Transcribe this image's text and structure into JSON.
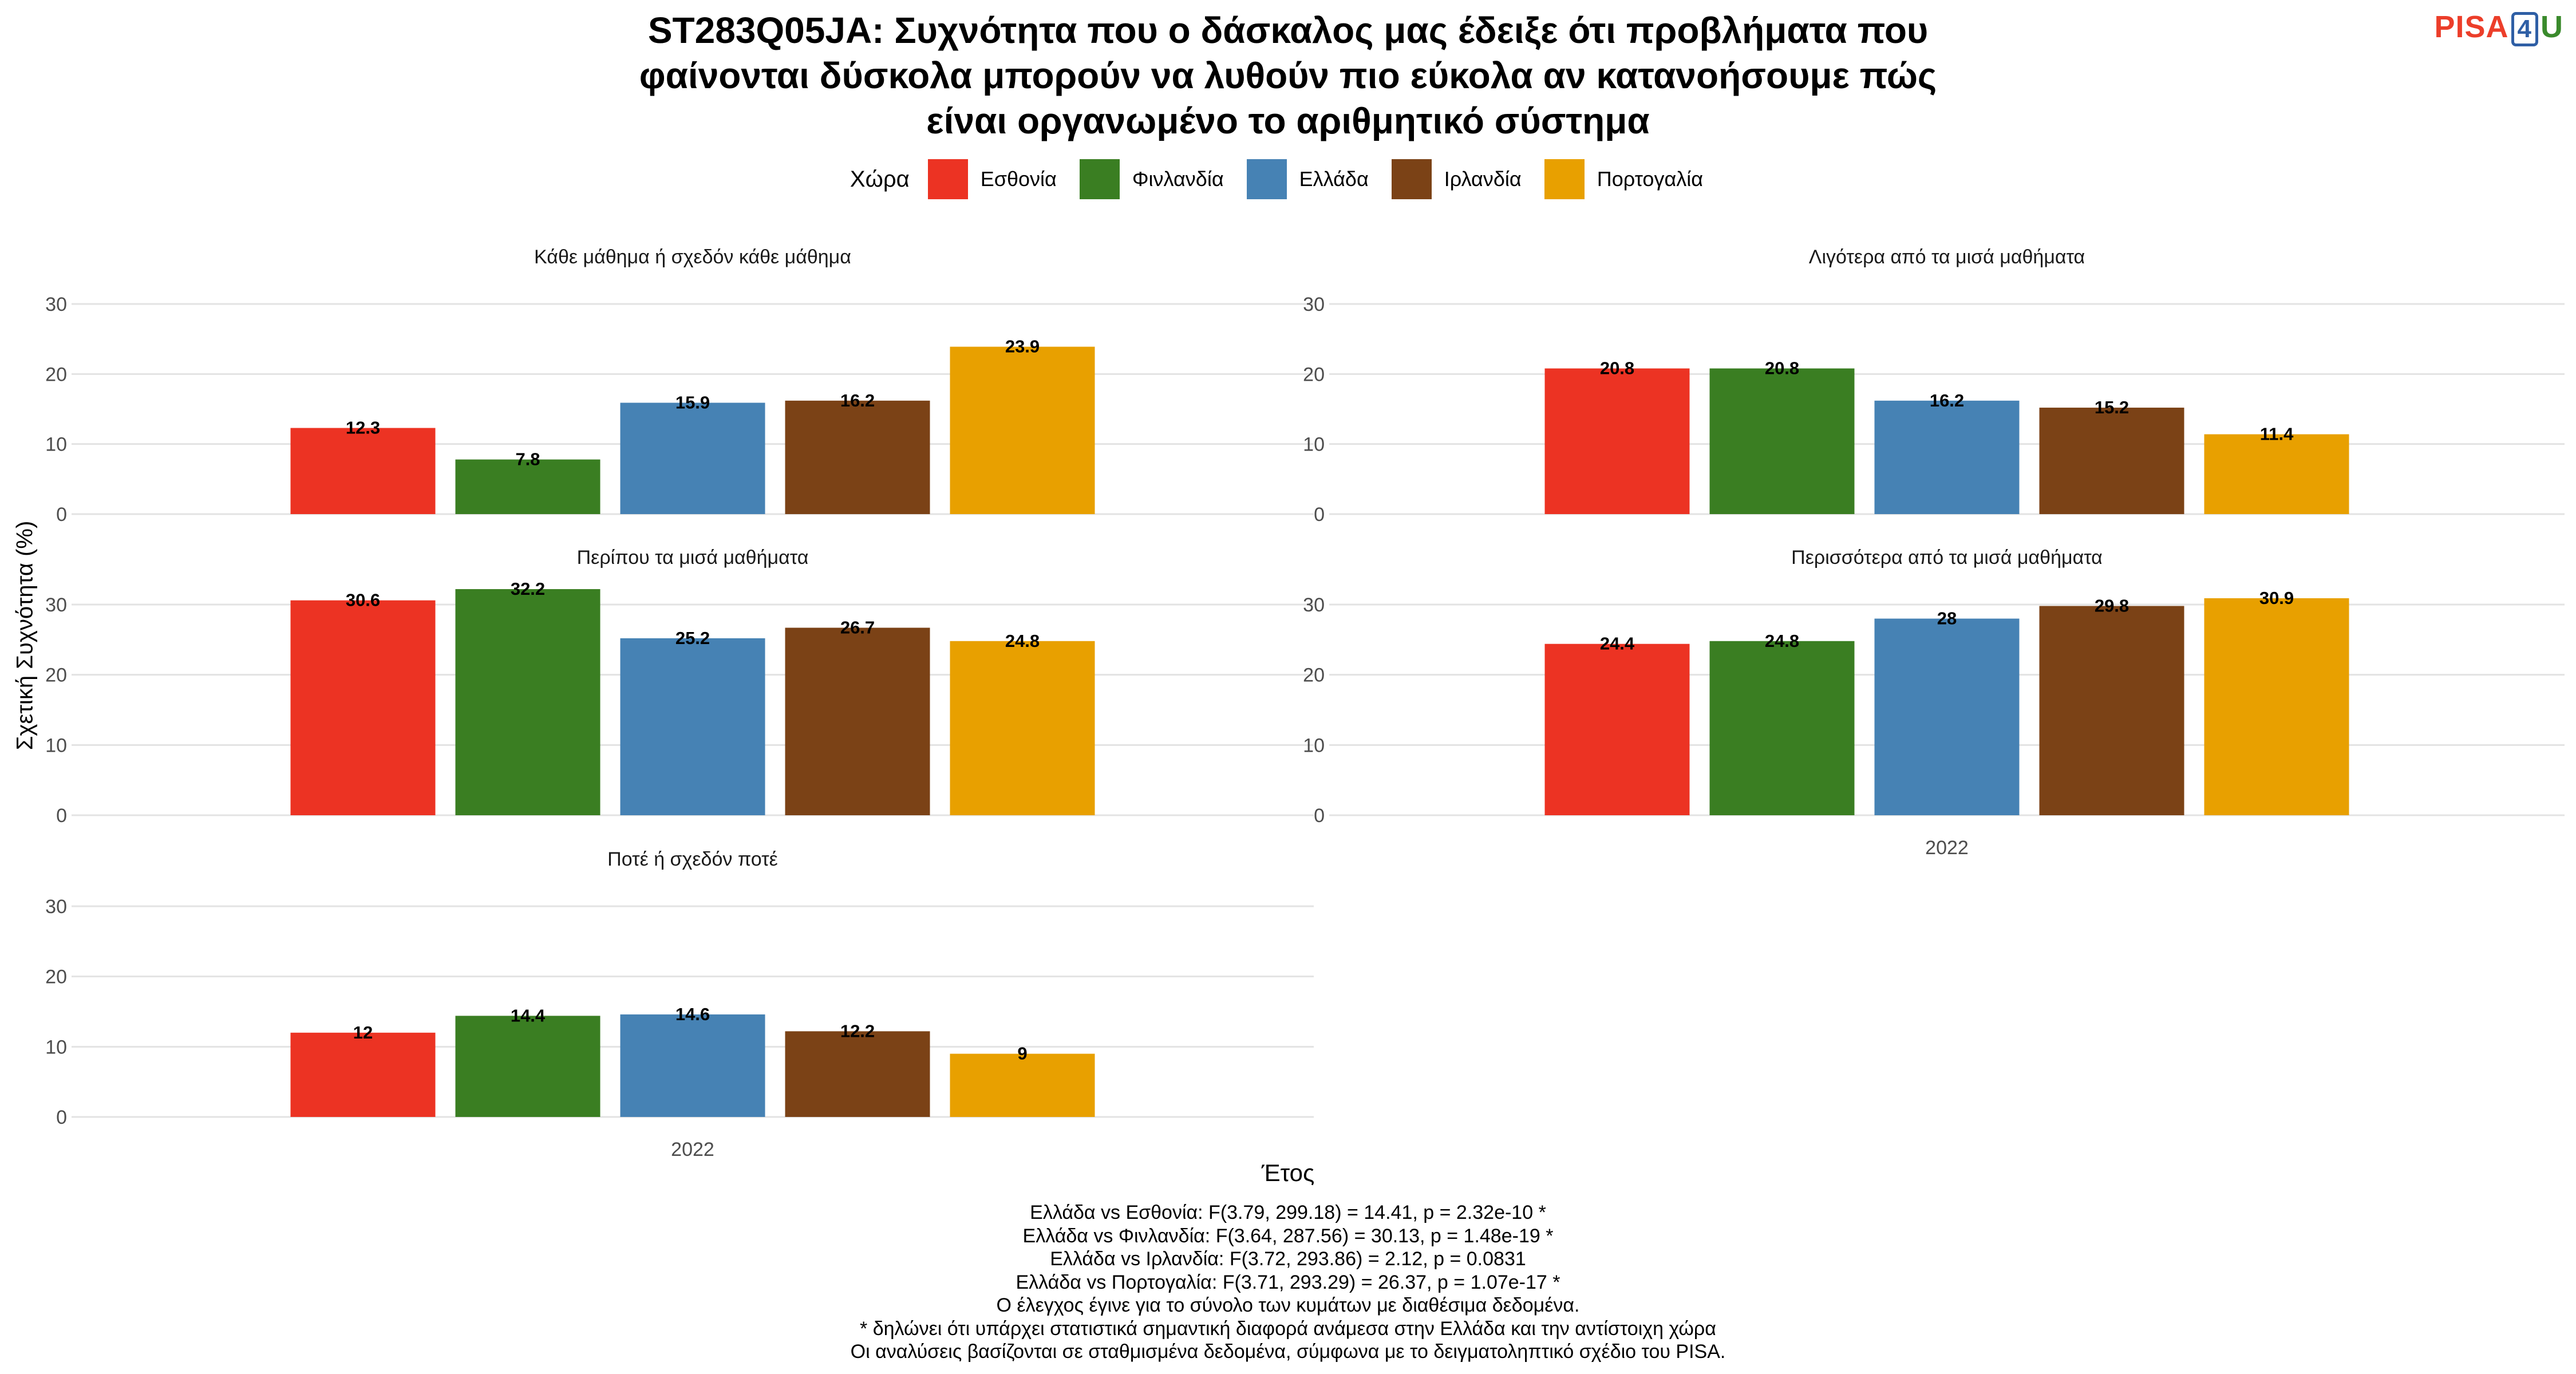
{
  "title_lines": [
    "ST283Q05JA: Συχνότητα που ο δάσκαλος μας έδειξε ότι προβλήματα που",
    "φαίνονται δύσκολα μπορούν να λυθούν πιο εύκολα αν κατανοήσουμε πώς",
    "είναι οργανωμένο το αριθμητικό σύστημα"
  ],
  "logo": {
    "part1": "PISA",
    "part2": "4",
    "part3": "U"
  },
  "legend": {
    "title": "Χώρα",
    "items": [
      {
        "label": "Εσθονία",
        "color": "#ec3323"
      },
      {
        "label": "Φινλανδία",
        "color": "#3a7e22"
      },
      {
        "label": "Ελλάδα",
        "color": "#4682b4"
      },
      {
        "label": "Ιρλανδία",
        "color": "#7b4216"
      },
      {
        "label": "Πορτογαλία",
        "color": "#e8a000"
      }
    ]
  },
  "axis": {
    "ylabel": "Σχετική Συχνότητα (%)",
    "xlabel": "Έτος"
  },
  "notes": [
    "Ελλάδα vs Εσθονία: F(3.79, 299.18) = 14.41, p = 2.32e-10 *",
    "Ελλάδα vs Φινλανδία: F(3.64, 287.56) = 30.13, p = 1.48e-19 *",
    "Ελλάδα vs Ιρλανδία: F(3.72, 293.86) = 2.12, p = 0.0831",
    "Ελλάδα vs Πορτογαλία: F(3.71, 293.29) = 26.37, p = 1.07e-17 *",
    "Ο έλεγχος έγινε για το σύνολο των κυμάτων με διαθέσιμα δεδομένα.",
    "* δηλώνει ότι υπάρχει στατιστικά σημαντική διαφορά ανάμεσα στην Ελλάδα και την αντίστοιχη χώρα",
    "Οι αναλύσεις βασίζονται σε σταθμισμένα δεδομένα, σύμφωνα με το δειγματοληπτικό σχέδιο του PISA."
  ],
  "chart_data": [
    {
      "type": "bar",
      "title": "Κάθε μάθημα ή σχεδόν κάθε μάθημα",
      "categories": [
        "2022"
      ],
      "ylim": [
        0,
        30
      ],
      "yticks": [
        0,
        10,
        20,
        30
      ],
      "series": [
        {
          "name": "Εσθονία",
          "values": [
            12.3
          ]
        },
        {
          "name": "Φινλανδία",
          "values": [
            7.8
          ]
        },
        {
          "name": "Ελλάδα",
          "values": [
            15.9
          ]
        },
        {
          "name": "Ιρλανδία",
          "values": [
            16.2
          ]
        },
        {
          "name": "Πορτογαλία",
          "values": [
            23.9
          ]
        }
      ]
    },
    {
      "type": "bar",
      "title": "Λιγότερα από τα μισά μαθήματα",
      "categories": [
        "2022"
      ],
      "ylim": [
        0,
        30
      ],
      "yticks": [
        0,
        10,
        20,
        30
      ],
      "series": [
        {
          "name": "Εσθονία",
          "values": [
            20.8
          ]
        },
        {
          "name": "Φινλανδία",
          "values": [
            20.8
          ]
        },
        {
          "name": "Ελλάδα",
          "values": [
            16.2
          ]
        },
        {
          "name": "Ιρλανδία",
          "values": [
            15.2
          ]
        },
        {
          "name": "Πορτογαλία",
          "values": [
            11.4
          ]
        }
      ]
    },
    {
      "type": "bar",
      "title": "Περίπου τα μισά μαθήματα",
      "categories": [
        "2022"
      ],
      "ylim": [
        0,
        30
      ],
      "yticks": [
        0,
        10,
        20,
        30
      ],
      "series": [
        {
          "name": "Εσθονία",
          "values": [
            30.6
          ]
        },
        {
          "name": "Φινλανδία",
          "values": [
            32.2
          ]
        },
        {
          "name": "Ελλάδα",
          "values": [
            25.2
          ]
        },
        {
          "name": "Ιρλανδία",
          "values": [
            26.7
          ]
        },
        {
          "name": "Πορτογαλία",
          "values": [
            24.8
          ]
        }
      ]
    },
    {
      "type": "bar",
      "title": "Περισσότερα από τα μισά μαθήματα",
      "categories": [
        "2022"
      ],
      "ylim": [
        0,
        30
      ],
      "yticks": [
        0,
        10,
        20,
        30
      ],
      "series": [
        {
          "name": "Εσθονία",
          "values": [
            24.4
          ]
        },
        {
          "name": "Φινλανδία",
          "values": [
            24.8
          ]
        },
        {
          "name": "Ελλάδα",
          "values": [
            28
          ]
        },
        {
          "name": "Ιρλανδία",
          "values": [
            29.8
          ]
        },
        {
          "name": "Πορτογαλία",
          "values": [
            30.9
          ]
        }
      ]
    },
    {
      "type": "bar",
      "title": "Ποτέ ή σχεδόν ποτέ",
      "categories": [
        "2022"
      ],
      "ylim": [
        0,
        30
      ],
      "yticks": [
        0,
        10,
        20,
        30
      ],
      "series": [
        {
          "name": "Εσθονία",
          "values": [
            12
          ]
        },
        {
          "name": "Φινλανδία",
          "values": [
            14.4
          ]
        },
        {
          "name": "Ελλάδα",
          "values": [
            14.6
          ]
        },
        {
          "name": "Ιρλανδία",
          "values": [
            12.2
          ]
        },
        {
          "name": "Πορτογαλία",
          "values": [
            9
          ]
        }
      ]
    }
  ]
}
